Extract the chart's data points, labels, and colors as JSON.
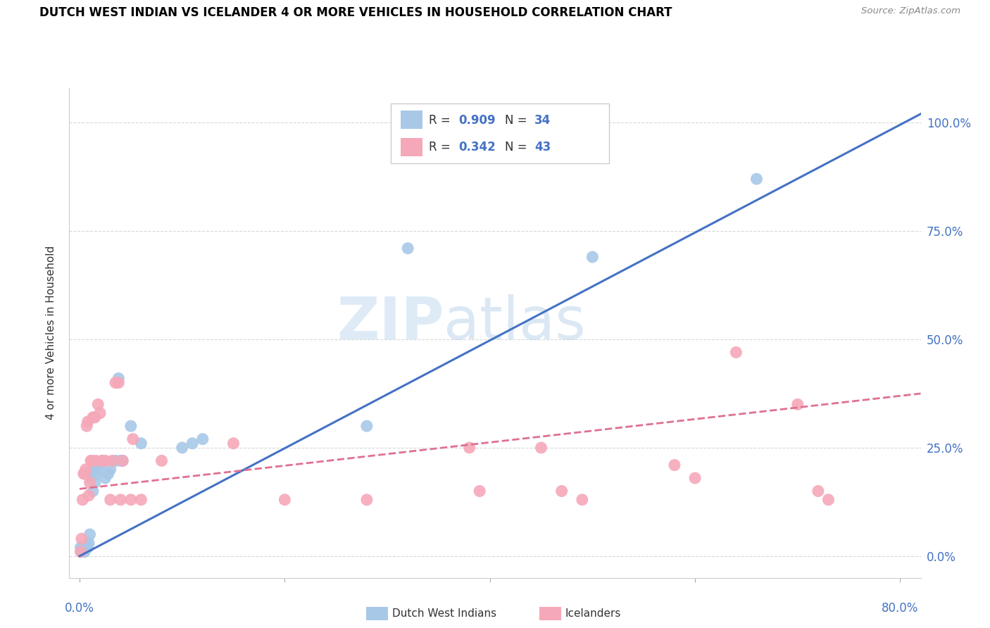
{
  "title": "DUTCH WEST INDIAN VS ICELANDER 4 OR MORE VEHICLES IN HOUSEHOLD CORRELATION CHART",
  "source": "Source: ZipAtlas.com",
  "ylabel": "4 or more Vehicles in Household",
  "ytick_labels": [
    "0.0%",
    "25.0%",
    "50.0%",
    "75.0%",
    "100.0%"
  ],
  "ytick_positions": [
    0.0,
    0.25,
    0.5,
    0.75,
    1.0
  ],
  "xlim": [
    -0.01,
    0.82
  ],
  "ylim": [
    -0.05,
    1.08
  ],
  "legend_blue_r": "0.909",
  "legend_blue_n": "34",
  "legend_pink_r": "0.342",
  "legend_pink_n": "43",
  "blue_color": "#a8c8e8",
  "pink_color": "#f5a8b8",
  "line_blue": "#4472c4",
  "line_pink": "#e07090",
  "blue_scatter": [
    [
      0.001,
      0.02
    ],
    [
      0.002,
      0.01
    ],
    [
      0.003,
      0.015
    ],
    [
      0.004,
      0.02
    ],
    [
      0.005,
      0.01
    ],
    [
      0.006,
      0.02
    ],
    [
      0.007,
      0.025
    ],
    [
      0.008,
      0.02
    ],
    [
      0.009,
      0.03
    ],
    [
      0.01,
      0.05
    ],
    [
      0.011,
      0.18
    ],
    [
      0.012,
      0.2
    ],
    [
      0.013,
      0.15
    ],
    [
      0.015,
      0.17
    ],
    [
      0.016,
      0.19
    ],
    [
      0.018,
      0.2
    ],
    [
      0.02,
      0.21
    ],
    [
      0.022,
      0.22
    ],
    [
      0.025,
      0.18
    ],
    [
      0.028,
      0.19
    ],
    [
      0.03,
      0.2
    ],
    [
      0.035,
      0.22
    ],
    [
      0.038,
      0.41
    ],
    [
      0.04,
      0.22
    ],
    [
      0.042,
      0.22
    ],
    [
      0.05,
      0.3
    ],
    [
      0.06,
      0.26
    ],
    [
      0.1,
      0.25
    ],
    [
      0.11,
      0.26
    ],
    [
      0.12,
      0.27
    ],
    [
      0.28,
      0.3
    ],
    [
      0.32,
      0.71
    ],
    [
      0.5,
      0.69
    ],
    [
      0.66,
      0.87
    ]
  ],
  "pink_scatter": [
    [
      0.001,
      0.01
    ],
    [
      0.002,
      0.04
    ],
    [
      0.003,
      0.13
    ],
    [
      0.004,
      0.19
    ],
    [
      0.005,
      0.19
    ],
    [
      0.006,
      0.2
    ],
    [
      0.007,
      0.3
    ],
    [
      0.008,
      0.31
    ],
    [
      0.009,
      0.14
    ],
    [
      0.01,
      0.17
    ],
    [
      0.011,
      0.22
    ],
    [
      0.012,
      0.22
    ],
    [
      0.013,
      0.32
    ],
    [
      0.015,
      0.32
    ],
    [
      0.016,
      0.22
    ],
    [
      0.018,
      0.35
    ],
    [
      0.02,
      0.33
    ],
    [
      0.022,
      0.22
    ],
    [
      0.025,
      0.22
    ],
    [
      0.03,
      0.13
    ],
    [
      0.032,
      0.22
    ],
    [
      0.035,
      0.4
    ],
    [
      0.038,
      0.4
    ],
    [
      0.04,
      0.13
    ],
    [
      0.042,
      0.22
    ],
    [
      0.05,
      0.13
    ],
    [
      0.052,
      0.27
    ],
    [
      0.06,
      0.13
    ],
    [
      0.08,
      0.22
    ],
    [
      0.15,
      0.26
    ],
    [
      0.2,
      0.13
    ],
    [
      0.28,
      0.13
    ],
    [
      0.38,
      0.25
    ],
    [
      0.39,
      0.15
    ],
    [
      0.45,
      0.25
    ],
    [
      0.47,
      0.15
    ],
    [
      0.49,
      0.13
    ],
    [
      0.58,
      0.21
    ],
    [
      0.6,
      0.18
    ],
    [
      0.64,
      0.47
    ],
    [
      0.7,
      0.35
    ],
    [
      0.72,
      0.15
    ],
    [
      0.73,
      0.13
    ]
  ],
  "blue_line_x": [
    0.0,
    0.82
  ],
  "blue_line_y": [
    0.0,
    1.02
  ],
  "pink_line_x": [
    0.0,
    0.82
  ],
  "pink_line_y": [
    0.155,
    0.375
  ]
}
